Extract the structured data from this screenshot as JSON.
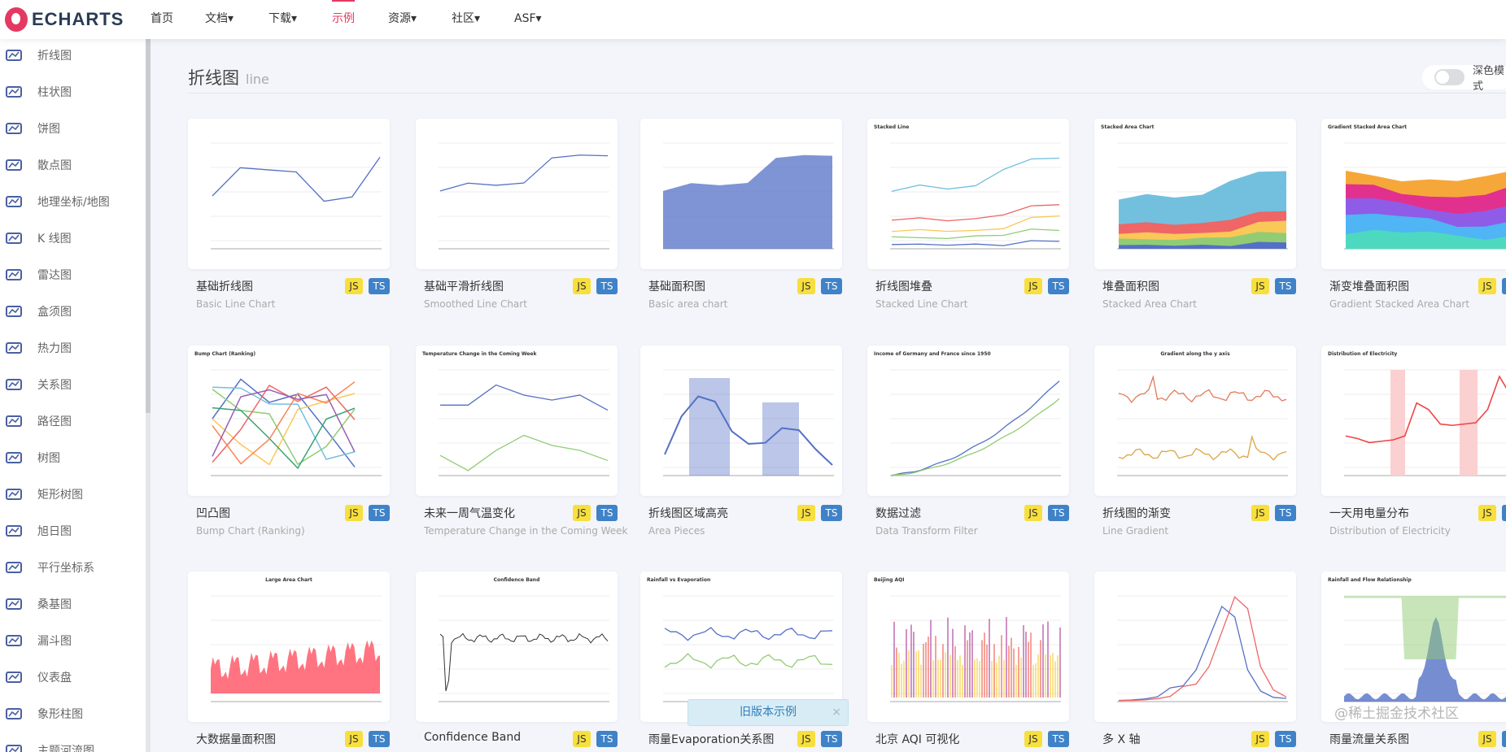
{
  "nav": {
    "logo": "ECHARTS",
    "items": [
      {
        "label": "首页"
      },
      {
        "label": "文档▾"
      },
      {
        "label": "下载▾"
      },
      {
        "label": "示例",
        "active": true
      },
      {
        "label": "资源▾"
      },
      {
        "label": "社区▾"
      },
      {
        "label": "ASF▾"
      }
    ]
  },
  "accent": "#e43961",
  "sidebar": {
    "items": [
      {
        "label": "折线图",
        "icon": "line-chart-icon"
      },
      {
        "label": "柱状图",
        "icon": "bar-chart-icon"
      },
      {
        "label": "饼图",
        "icon": "pie-chart-icon"
      },
      {
        "label": "散点图",
        "icon": "scatter-icon"
      },
      {
        "label": "地理坐标/地图",
        "icon": "map-icon"
      },
      {
        "label": "K 线图",
        "icon": "candlestick-icon"
      },
      {
        "label": "雷达图",
        "icon": "radar-icon"
      },
      {
        "label": "盒须图",
        "icon": "boxplot-icon"
      },
      {
        "label": "热力图",
        "icon": "heatmap-icon"
      },
      {
        "label": "关系图",
        "icon": "graph-icon"
      },
      {
        "label": "路径图",
        "icon": "lines-icon"
      },
      {
        "label": "树图",
        "icon": "tree-icon"
      },
      {
        "label": "矩形树图",
        "icon": "treemap-icon"
      },
      {
        "label": "旭日图",
        "icon": "sunburst-icon"
      },
      {
        "label": "平行坐标系",
        "icon": "parallel-icon"
      },
      {
        "label": "桑基图",
        "icon": "sankey-icon"
      },
      {
        "label": "漏斗图",
        "icon": "funnel-icon"
      },
      {
        "label": "仪表盘",
        "icon": "gauge-icon"
      },
      {
        "label": "象形柱图",
        "icon": "pictorial-bar-icon"
      },
      {
        "label": "主题河流图",
        "icon": "theme-river-icon"
      }
    ]
  },
  "page": {
    "title": "折线图",
    "subtitle": "line",
    "dark_mode_label": "深色模式"
  },
  "badges": {
    "js": "JS",
    "ts": "TS"
  },
  "cards": [
    {
      "title": "基础折线图",
      "subtitle": "Basic Line Chart",
      "kind": "line",
      "thumb_title": ""
    },
    {
      "title": "基础平滑折线图",
      "subtitle": "Smoothed Line Chart",
      "kind": "smooth",
      "thumb_title": ""
    },
    {
      "title": "基础面积图",
      "subtitle": "Basic area chart",
      "kind": "area",
      "thumb_title": ""
    },
    {
      "title": "折线图堆叠",
      "subtitle": "Stacked Line Chart",
      "kind": "stackline",
      "thumb_title": "Stacked Line"
    },
    {
      "title": "堆叠面积图",
      "subtitle": "Stacked Area Chart",
      "kind": "stackarea",
      "thumb_title": "Stacked Area Chart"
    },
    {
      "title": "渐变堆叠面积图",
      "subtitle": "Gradient Stacked Area Chart",
      "kind": "gradarea",
      "thumb_title": "Gradient Stacked Area Chart"
    },
    {
      "title": "凹凸图",
      "subtitle": "Bump Chart (Ranking)",
      "kind": "bump",
      "thumb_title": "Bump Chart (Ranking)"
    },
    {
      "title": "未来一周气温变化",
      "subtitle": "Temperature Change in the Coming Week",
      "kind": "temp",
      "thumb_title": "Temperature Change in the Coming Week"
    },
    {
      "title": "折线图区域高亮",
      "subtitle": "Area Pieces",
      "kind": "pieces",
      "thumb_title": ""
    },
    {
      "title": "数据过滤",
      "subtitle": "Data Transform Filter",
      "kind": "filter",
      "thumb_title": "Income of Germany and France since 1950"
    },
    {
      "title": "折线图的渐变",
      "subtitle": "Line Gradient",
      "kind": "gradline",
      "thumb_title": "Gradient along the y axis"
    },
    {
      "title": "一天用电量分布",
      "subtitle": "Distribution of Electricity",
      "kind": "elec",
      "thumb_title": "Distribution of Electricity"
    },
    {
      "title": "大数据量面积图",
      "subtitle": "",
      "kind": "large",
      "thumb_title": "Large Area Chart"
    },
    {
      "title": "Confidence Band",
      "subtitle": "",
      "kind": "band",
      "thumb_title": "Confidence Band"
    },
    {
      "title": "雨量Evaporation关系图",
      "subtitle": "",
      "kind": "rain",
      "thumb_title": "Rainfall vs Evaporation"
    },
    {
      "title": "北京 AQI 可视化",
      "subtitle": "",
      "kind": "aqi",
      "thumb_title": "Beijing AQI"
    },
    {
      "title": "多 X 轴",
      "subtitle": "",
      "kind": "multix",
      "thumb_title": ""
    },
    {
      "title": "雨量流量关系图",
      "subtitle": "",
      "kind": "rainflow",
      "thumb_title": "Rainfall and Flow Relationship"
    }
  ],
  "toast": {
    "label": "旧版本示例",
    "close": "×"
  },
  "watermark": "@稀土掘金技术社区"
}
